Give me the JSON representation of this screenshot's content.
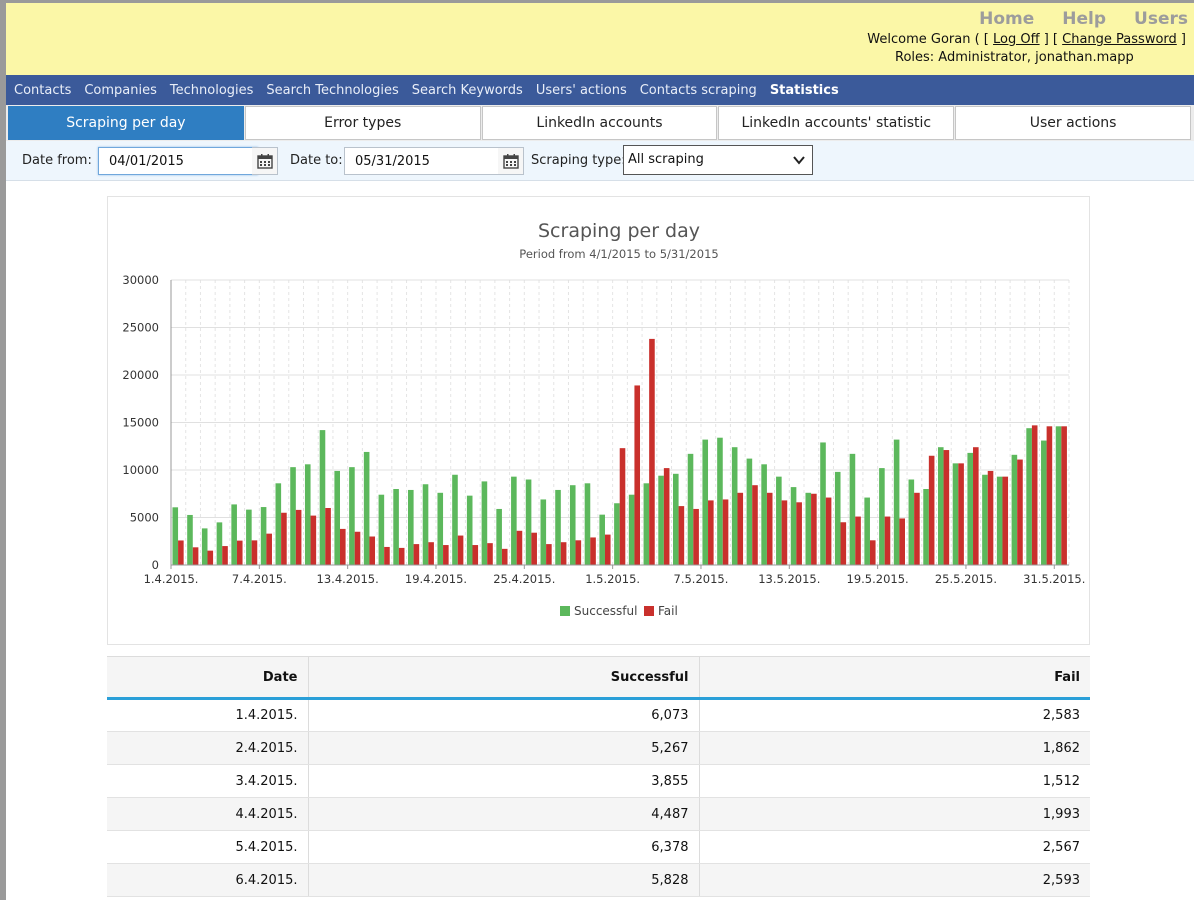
{
  "header": {
    "links": [
      "Home",
      "Help",
      "Users"
    ],
    "welcome_prefix": "Welcome Goran ( [",
    "logoff_label": "Log Off",
    "between": "] [",
    "change_password_label": "Change Password",
    "welcome_suffix": "]",
    "roles": "Roles: Administrator, jonathan.mapp"
  },
  "nav": {
    "items": [
      "Contacts",
      "Companies",
      "Technologies",
      "Search Technologies",
      "Search Keywords",
      "Users' actions",
      "Contacts scraping",
      "Statistics"
    ],
    "active_index": 7
  },
  "tabs": {
    "items": [
      "Scraping per day",
      "Error types",
      "LinkedIn accounts",
      "LinkedIn accounts' statistic",
      "User actions"
    ],
    "active_index": 0
  },
  "filters": {
    "date_from_label": "Date from:",
    "date_from_value": "04/01/2015",
    "date_to_label": "Date to:",
    "date_to_value": "05/31/2015",
    "scraping_type_label": "Scraping type:",
    "scraping_type_value": "All scraping"
  },
  "colors": {
    "successful": "#5cb85c",
    "fail": "#c9302c",
    "nav_bg": "#3b5a9a",
    "header_bg": "#fbf7a7",
    "tab_active": "#2f7ec2"
  },
  "chart_data": {
    "type": "bar",
    "title": "Scraping per day",
    "subtitle": "Period from 4/1/2015 to 5/31/2015",
    "ylim": [
      0,
      30000
    ],
    "y_ticks": [
      0,
      5000,
      10000,
      15000,
      20000,
      25000,
      30000
    ],
    "x_tick_labels": [
      "1.4.2015.",
      "7.4.2015.",
      "13.4.2015.",
      "19.4.2015.",
      "25.4.2015.",
      "1.5.2015.",
      "7.5.2015.",
      "13.5.2015.",
      "19.5.2015.",
      "25.5.2015.",
      "31.5.2015."
    ],
    "legend_position": "bottom",
    "categories": [
      "1.4.2015.",
      "2.4.2015.",
      "3.4.2015.",
      "4.4.2015.",
      "5.4.2015.",
      "6.4.2015.",
      "7.4.2015.",
      "8.4.2015.",
      "9.4.2015.",
      "10.4.2015.",
      "11.4.2015.",
      "12.4.2015.",
      "13.4.2015.",
      "14.4.2015.",
      "15.4.2015.",
      "16.4.2015.",
      "17.4.2015.",
      "18.4.2015.",
      "19.4.2015.",
      "20.4.2015.",
      "21.4.2015.",
      "22.4.2015.",
      "23.4.2015.",
      "24.4.2015.",
      "25.4.2015.",
      "26.4.2015.",
      "27.4.2015.",
      "28.4.2015.",
      "29.4.2015.",
      "30.4.2015.",
      "1.5.2015.",
      "2.5.2015.",
      "3.5.2015.",
      "4.5.2015.",
      "5.5.2015.",
      "6.5.2015.",
      "7.5.2015.",
      "8.5.2015.",
      "9.5.2015.",
      "10.5.2015.",
      "11.5.2015.",
      "12.5.2015.",
      "13.5.2015.",
      "14.5.2015.",
      "15.5.2015.",
      "16.5.2015.",
      "17.5.2015.",
      "18.5.2015.",
      "19.5.2015.",
      "20.5.2015.",
      "21.5.2015.",
      "22.5.2015.",
      "23.5.2015.",
      "24.5.2015.",
      "25.5.2015.",
      "26.5.2015.",
      "27.5.2015.",
      "28.5.2015.",
      "29.5.2015.",
      "30.5.2015.",
      "31.5.2015."
    ],
    "series": [
      {
        "name": "Successful",
        "values": [
          6073,
          5267,
          3855,
          4487,
          6378,
          5828,
          6100,
          8600,
          10300,
          10600,
          14200,
          9900,
          10300,
          11900,
          7400,
          8000,
          7900,
          8500,
          7600,
          9500,
          7300,
          8800,
          5900,
          9300,
          9000,
          6900,
          7900,
          8400,
          8600,
          5300,
          6500,
          7400,
          8600,
          9400,
          9600,
          11700,
          13200,
          13400,
          12400,
          11200,
          10600,
          9300,
          8200,
          7600,
          12900,
          9800,
          11700,
          7100,
          10200,
          13200,
          9000,
          8000,
          12400,
          10700,
          11800,
          9500,
          9300,
          11600,
          14400,
          13100,
          14600
        ]
      },
      {
        "name": "Fail",
        "values": [
          2583,
          1862,
          1512,
          1993,
          2567,
          2593,
          3300,
          5500,
          5800,
          5200,
          6000,
          3800,
          3500,
          3000,
          1900,
          1800,
          2200,
          2400,
          2100,
          3100,
          2100,
          2300,
          1700,
          3600,
          3400,
          2200,
          2400,
          2600,
          2900,
          3200,
          12300,
          18900,
          23800,
          10200,
          6200,
          5900,
          6800,
          6900,
          7600,
          8400,
          7600,
          6800,
          6600,
          7500,
          7100,
          4500,
          5100,
          2600,
          5100,
          4900,
          7600,
          11500,
          12100,
          10700,
          12400,
          9900,
          9300,
          11100,
          14700,
          14600,
          14600
        ]
      }
    ]
  },
  "table": {
    "headers": [
      "Date",
      "Successful",
      "Fail"
    ],
    "rows": [
      [
        "1.4.2015.",
        "6,073",
        "2,583"
      ],
      [
        "2.4.2015.",
        "5,267",
        "1,862"
      ],
      [
        "3.4.2015.",
        "3,855",
        "1,512"
      ],
      [
        "4.4.2015.",
        "4,487",
        "1,993"
      ],
      [
        "5.4.2015.",
        "6,378",
        "2,567"
      ],
      [
        "6.4.2015.",
        "5,828",
        "2,593"
      ]
    ]
  }
}
